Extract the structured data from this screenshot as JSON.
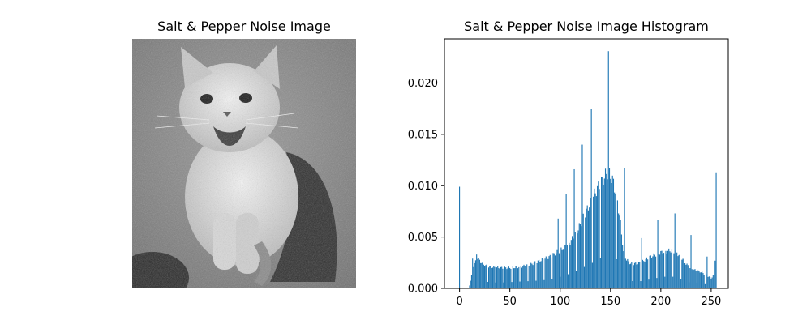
{
  "figure": {
    "left_title": "Salt & Pepper Noise Image",
    "right_title": "Salt & Pepper Noise Image Histogram"
  },
  "image_panel": {
    "description_icon": "cat-photo-icon",
    "colormap": "grayscale"
  },
  "chart_data": {
    "type": "bar",
    "title": "Salt & Pepper Noise Image Histogram",
    "xlabel": "",
    "ylabel": "",
    "xlim": [
      -15,
      267
    ],
    "ylim": [
      0,
      0.0243
    ],
    "xticks": [
      0,
      50,
      100,
      150,
      200,
      250
    ],
    "yticks": [
      0.0,
      0.005,
      0.01,
      0.015,
      0.02
    ],
    "xtick_labels": [
      "0",
      "50",
      "100",
      "150",
      "200",
      "250"
    ],
    "ytick_labels": [
      "0.000",
      "0.005",
      "0.010",
      "0.015",
      "0.020"
    ],
    "bar_color": "#1f77b4",
    "grid": false,
    "bins": 256,
    "profile": [
      [
        0,
        0.0
      ],
      [
        9,
        0.0
      ],
      [
        10,
        0.0003
      ],
      [
        12,
        0.0012
      ],
      [
        14,
        0.0022
      ],
      [
        16,
        0.0026
      ],
      [
        18,
        0.003
      ],
      [
        20,
        0.0027
      ],
      [
        24,
        0.0023
      ],
      [
        30,
        0.0021
      ],
      [
        40,
        0.002
      ],
      [
        50,
        0.002
      ],
      [
        60,
        0.0021
      ],
      [
        70,
        0.0023
      ],
      [
        80,
        0.0027
      ],
      [
        90,
        0.0031
      ],
      [
        100,
        0.0037
      ],
      [
        110,
        0.0045
      ],
      [
        118,
        0.0058
      ],
      [
        125,
        0.0073
      ],
      [
        132,
        0.0088
      ],
      [
        138,
        0.0099
      ],
      [
        143,
        0.0107
      ],
      [
        147,
        0.0113
      ],
      [
        150,
        0.011
      ],
      [
        153,
        0.0103
      ],
      [
        157,
        0.0085
      ],
      [
        160,
        0.0063
      ],
      [
        163,
        0.0035
      ],
      [
        166,
        0.0028
      ],
      [
        170,
        0.0024
      ],
      [
        175,
        0.0024
      ],
      [
        180,
        0.0025
      ],
      [
        190,
        0.0031
      ],
      [
        200,
        0.0035
      ],
      [
        205,
        0.0036
      ],
      [
        210,
        0.0037
      ],
      [
        215,
        0.0035
      ],
      [
        220,
        0.0031
      ],
      [
        225,
        0.0024
      ],
      [
        230,
        0.0019
      ],
      [
        240,
        0.0016
      ],
      [
        245,
        0.0013
      ],
      [
        250,
        0.001
      ],
      [
        252,
        0.0012
      ],
      [
        255,
        0.0015
      ]
    ],
    "spikes": [
      {
        "x": 0,
        "y": 0.0099
      },
      {
        "x": 13,
        "y": 0.0029
      },
      {
        "x": 17,
        "y": 0.0033
      },
      {
        "x": 98,
        "y": 0.0068
      },
      {
        "x": 106,
        "y": 0.0092
      },
      {
        "x": 114,
        "y": 0.0116
      },
      {
        "x": 122,
        "y": 0.014
      },
      {
        "x": 131,
        "y": 0.0175
      },
      {
        "x": 148,
        "y": 0.0231
      },
      {
        "x": 164,
        "y": 0.0117
      },
      {
        "x": 181,
        "y": 0.0049
      },
      {
        "x": 197,
        "y": 0.0067
      },
      {
        "x": 214,
        "y": 0.0073
      },
      {
        "x": 230,
        "y": 0.0052
      },
      {
        "x": 246,
        "y": 0.0031
      },
      {
        "x": 255,
        "y": 0.0113
      },
      {
        "x": 254,
        "y": 0.0027
      }
    ],
    "gaps_every": 8
  }
}
